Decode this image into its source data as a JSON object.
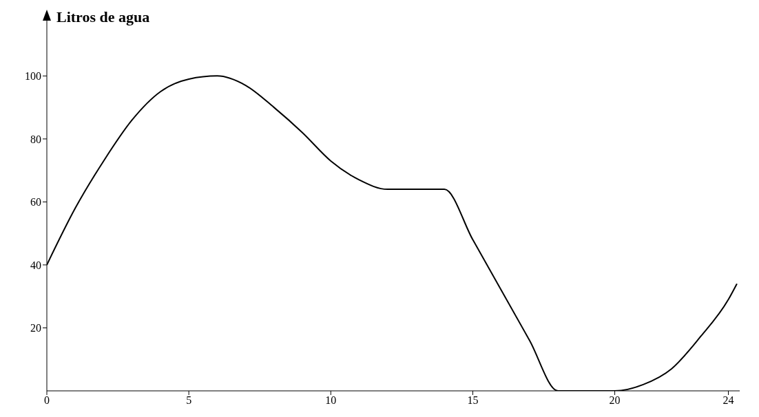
{
  "chart_data": {
    "type": "line",
    "ylabel": "Litros de agua",
    "x": [
      0,
      1,
      2,
      3,
      4,
      5,
      6,
      7,
      8,
      9,
      10,
      11,
      12,
      13,
      14,
      15,
      16,
      17,
      18,
      19,
      20,
      21,
      22,
      23,
      24,
      24.3
    ],
    "series": [
      {
        "color": "#000000",
        "values": [
          40,
          58,
          73,
          86,
          95,
          99,
          100,
          97,
          90,
          82,
          73,
          67,
          64,
          64,
          64,
          48,
          32,
          16,
          0,
          0,
          0,
          2,
          7,
          17,
          29,
          34
        ]
      }
    ],
    "xlim": [
      0,
      24.4
    ],
    "xticks": [
      0,
      5,
      10,
      15,
      20,
      24
    ],
    "ylim": [
      0,
      118
    ],
    "yticks": [
      20,
      40,
      60,
      80,
      100
    ],
    "grid": false,
    "marker": "none",
    "line_style": "solid"
  }
}
